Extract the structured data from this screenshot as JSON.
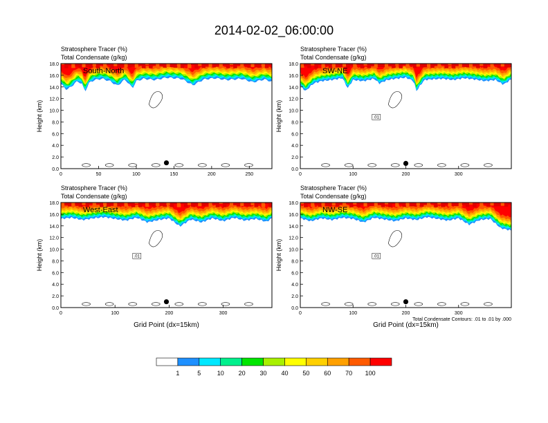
{
  "figure": {
    "title": "2014-02-02_06:00:00",
    "contour_note": "Total Condensate Contours: .01 to .01 by .000",
    "palette": [
      "#ffffff",
      "#1e90ff",
      "#00e8ff",
      "#00f08c",
      "#00e600",
      "#a8f000",
      "#ffff00",
      "#ffd000",
      "#ffa000",
      "#ff5a00",
      "#ff0000"
    ],
    "colorbar_labels": [
      "1",
      "5",
      "10",
      "20",
      "30",
      "40",
      "50",
      "60",
      "70",
      "100"
    ]
  },
  "chart_data": [
    {
      "type": "heatmap",
      "panel": "South-North",
      "title": "Stratosphere Tracer   (%)",
      "subtitle": "Total Condensate   (g/kg)",
      "ylabel": "Height (km)",
      "xlabel": "",
      "xlim": [
        0,
        280
      ],
      "ylim": [
        0,
        18
      ],
      "xticks": [
        0,
        50,
        100,
        150,
        200,
        250
      ],
      "yticks": [
        "0.0",
        "2.0",
        "4.0",
        "6.0",
        "8.0",
        "10.0",
        "12.0",
        "14.0",
        "16.0",
        "18.0"
      ],
      "tracer_edge": {
        "x": [
          0,
          8,
          15,
          22,
          28,
          32,
          38,
          45,
          55,
          65,
          75,
          85,
          95,
          100,
          110,
          125,
          140,
          160,
          175,
          190,
          205,
          220,
          240,
          255,
          270,
          280
        ],
        "y": [
          14.5,
          13.5,
          14.2,
          15,
          14.5,
          13.2,
          14.8,
          15.2,
          15.4,
          15.0,
          14.2,
          15.3,
          13.8,
          15.0,
          15.4,
          15.2,
          15.6,
          15.4,
          14.3,
          15.3,
          15.5,
          15.2,
          15.4,
          14.8,
          15.3,
          14.9
        ]
      },
      "contour_label": "",
      "marker": {
        "x": 140,
        "y": 1.0
      }
    },
    {
      "type": "heatmap",
      "panel": "SW-NE",
      "title": "Stratosphere Tracer   (%)",
      "subtitle": "Total Condensate   (g/kg)",
      "ylabel": "Height (km)",
      "xlabel": "",
      "xlim": [
        0,
        400
      ],
      "ylim": [
        0,
        18
      ],
      "xticks": [
        0,
        100,
        200,
        300
      ],
      "yticks": [
        "0.0",
        "2.0",
        "4.0",
        "6.0",
        "8.0",
        "10.0",
        "12.0",
        "14.0",
        "16.0",
        "18.0"
      ],
      "tracer_edge": {
        "x": [
          0,
          10,
          25,
          40,
          60,
          80,
          90,
          100,
          120,
          140,
          150,
          165,
          180,
          200,
          215,
          220,
          235,
          250,
          270,
          290,
          310,
          330,
          350,
          370,
          385,
          400
        ],
        "y": [
          14.2,
          13.3,
          14.6,
          15.0,
          15.2,
          15.5,
          13.8,
          15.2,
          15.0,
          15.4,
          14.6,
          15.2,
          15.4,
          15.6,
          15.0,
          13.3,
          15.2,
          15.3,
          15.4,
          15.2,
          15.5,
          15.3,
          15.0,
          15.2,
          14.4,
          15.3
        ]
      },
      "contour_label": ".01",
      "marker": {
        "x": 200,
        "y": 0.9
      }
    },
    {
      "type": "heatmap",
      "panel": "West-East",
      "title": "Stratosphere Tracer   (%)",
      "subtitle": "Total Condensate   (g/kg)",
      "ylabel": "Height (km)",
      "xlabel": "Grid Point (dx=15km)",
      "xlim": [
        0,
        390
      ],
      "ylim": [
        0,
        18
      ],
      "xticks": [
        0,
        100,
        200,
        300
      ],
      "yticks": [
        "0.0",
        "2.0",
        "4.0",
        "6.0",
        "8.0",
        "10.0",
        "12.0",
        "14.0",
        "16.0",
        "18.0"
      ],
      "tracer_edge": {
        "x": [
          0,
          20,
          40,
          60,
          80,
          100,
          120,
          140,
          160,
          180,
          200,
          220,
          240,
          260,
          280,
          300,
          320,
          340,
          360,
          380,
          390
        ],
        "y": [
          15.2,
          15.4,
          15.0,
          15.3,
          15.5,
          15.2,
          14.9,
          15.4,
          14.6,
          15.0,
          15.3,
          13.9,
          15.1,
          14.6,
          15.3,
          14.8,
          15.4,
          14.9,
          15.2,
          14.7,
          15.3
        ]
      },
      "contour_label": ".01",
      "marker": {
        "x": 195,
        "y": 1.0
      }
    },
    {
      "type": "heatmap",
      "panel": "NW-SE",
      "title": "Stratosphere Tracer   (%)",
      "subtitle": "Total Condensate   (g/kg)",
      "ylabel": "Height (km)",
      "xlabel": "Grid Point (dx=15km)",
      "xlim": [
        0,
        400
      ],
      "ylim": [
        0,
        18
      ],
      "xticks": [
        0,
        100,
        200,
        300
      ],
      "yticks": [
        "0.0",
        "2.0",
        "4.0",
        "6.0",
        "8.0",
        "10.0",
        "12.0",
        "14.0",
        "16.0",
        "18.0"
      ],
      "tracer_edge": {
        "x": [
          0,
          20,
          40,
          60,
          80,
          100,
          120,
          140,
          160,
          180,
          200,
          220,
          240,
          260,
          280,
          300,
          320,
          340,
          360,
          380,
          400
        ],
        "y": [
          15.3,
          14.8,
          15.3,
          15.0,
          15.4,
          15.2,
          14.6,
          15.4,
          15.1,
          14.8,
          15.3,
          15.0,
          15.5,
          15.2,
          14.9,
          15.3,
          14.2,
          15.0,
          15.2,
          13.6,
          13.2
        ]
      },
      "contour_label": ".01",
      "marker": {
        "x": 200,
        "y": 1.0
      }
    }
  ]
}
